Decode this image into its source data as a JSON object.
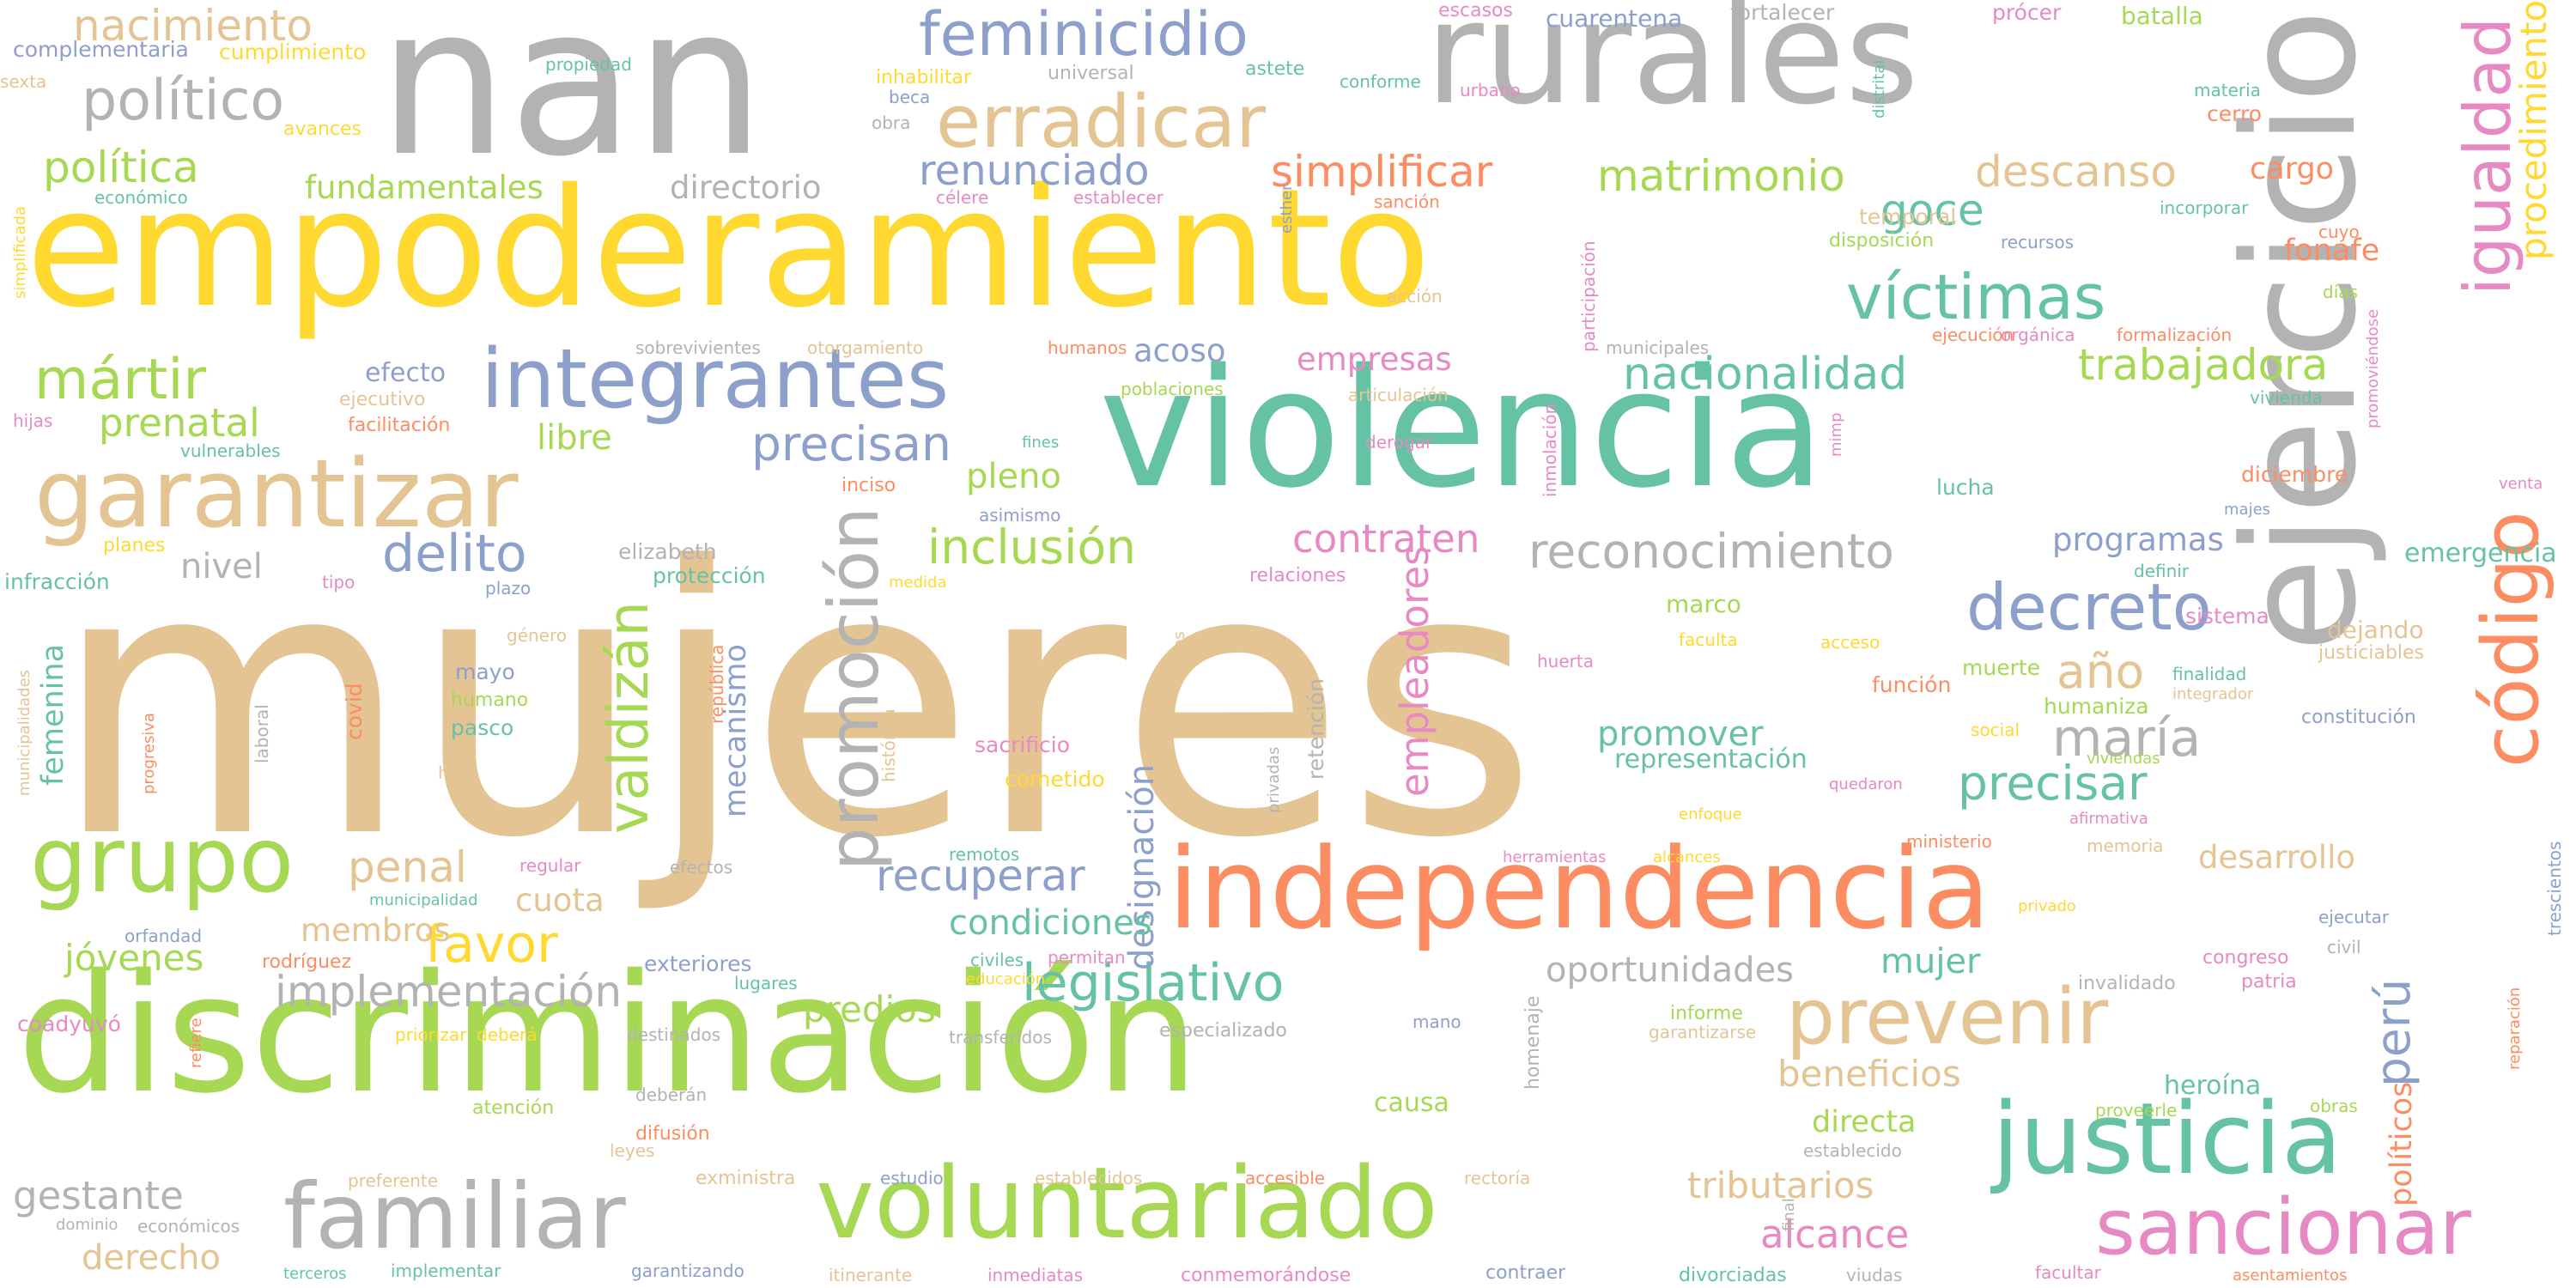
{
  "colors": {
    "green": "#a6d854",
    "gray": "#b3b3b3",
    "tan": "#e5c494",
    "yellow": "#ffd92f",
    "teal": "#66c2a5",
    "blue": "#8da0cb",
    "orange": "#fc8d62",
    "pink": "#e78ac3"
  },
  "words": [
    {
      "text": "mujeres",
      "color": "tan"
    },
    {
      "text": "nan",
      "color": "gray"
    },
    {
      "text": "empoderamiento",
      "color": "yellow"
    },
    {
      "text": "violencia",
      "color": "teal"
    },
    {
      "text": "discriminación",
      "color": "green"
    },
    {
      "text": "rurales",
      "color": "gray"
    },
    {
      "text": "ejercicio",
      "color": "gray"
    },
    {
      "text": "independencia",
      "color": "orange"
    },
    {
      "text": "voluntariado",
      "color": "green"
    },
    {
      "text": "integrantes",
      "color": "blue"
    },
    {
      "text": "garantizar",
      "color": "tan"
    },
    {
      "text": "justicia",
      "color": "teal"
    },
    {
      "text": "código",
      "color": "orange"
    },
    {
      "text": "promoción",
      "color": "gray"
    },
    {
      "text": "grupo",
      "color": "green"
    },
    {
      "text": "familiar",
      "color": "gray"
    },
    {
      "text": "sancionar",
      "color": "pink"
    },
    {
      "text": "prevenir",
      "color": "tan"
    },
    {
      "text": "igualdad",
      "color": "pink"
    },
    {
      "text": "erradicar",
      "color": "tan"
    },
    {
      "text": "feminicidio",
      "color": "blue"
    },
    {
      "text": "víctimas",
      "color": "teal"
    },
    {
      "text": "valdizán",
      "color": "green"
    },
    {
      "text": "decreto",
      "color": "blue"
    },
    {
      "text": "legislativo",
      "color": "teal"
    },
    {
      "text": "político",
      "color": "gray"
    },
    {
      "text": "mártir",
      "color": "green"
    },
    {
      "text": "precisan",
      "color": "blue"
    },
    {
      "text": "delito",
      "color": "blue"
    },
    {
      "text": "empleadores",
      "color": "pink"
    },
    {
      "text": "inclusión",
      "color": "green"
    },
    {
      "text": "reconocimiento",
      "color": "gray"
    },
    {
      "text": "nacionalidad",
      "color": "teal"
    },
    {
      "text": "trabajadora",
      "color": "green"
    },
    {
      "text": "simplificar",
      "color": "orange"
    },
    {
      "text": "matrimonio",
      "color": "green"
    },
    {
      "text": "política",
      "color": "green"
    },
    {
      "text": "implementación",
      "color": "gray"
    },
    {
      "text": "año",
      "color": "tan"
    },
    {
      "text": "maría",
      "color": "gray"
    },
    {
      "text": "precisar",
      "color": "teal"
    },
    {
      "text": "perú",
      "color": "blue"
    },
    {
      "text": "procedimiento",
      "color": "yellow"
    },
    {
      "text": "renunciado",
      "color": "blue"
    },
    {
      "text": "nacimiento",
      "color": "tan"
    },
    {
      "text": "descanso",
      "color": "tan"
    },
    {
      "text": "goce",
      "color": "teal"
    },
    {
      "text": "favor",
      "color": "yellow"
    },
    {
      "text": "penal",
      "color": "tan"
    },
    {
      "text": "recuperar",
      "color": "blue"
    },
    {
      "text": "designación",
      "color": "blue"
    },
    {
      "text": "prenatal",
      "color": "green"
    },
    {
      "text": "gestante",
      "color": "gray"
    },
    {
      "text": "derecho",
      "color": "tan"
    },
    {
      "text": "alcance",
      "color": "pink"
    },
    {
      "text": "tributarios",
      "color": "tan"
    },
    {
      "text": "beneficios",
      "color": "tan"
    },
    {
      "text": "políticos",
      "color": "orange"
    },
    {
      "text": "fundamentales",
      "color": "green"
    },
    {
      "text": "directorio",
      "color": "gray"
    },
    {
      "text": "acoso",
      "color": "blue"
    },
    {
      "text": "empresas",
      "color": "pink"
    },
    {
      "text": "contraten",
      "color": "pink"
    },
    {
      "text": "pleno",
      "color": "green"
    },
    {
      "text": "libre",
      "color": "green"
    },
    {
      "text": "nivel",
      "color": "gray"
    },
    {
      "text": "promover",
      "color": "teal"
    },
    {
      "text": "condiciones",
      "color": "teal"
    },
    {
      "text": "oportunidades",
      "color": "gray"
    },
    {
      "text": "mujer",
      "color": "teal"
    },
    {
      "text": "predios",
      "color": "green"
    },
    {
      "text": "jóvenes",
      "color": "green"
    },
    {
      "text": "membros",
      "color": "tan"
    },
    {
      "text": "cuota",
      "color": "tan"
    },
    {
      "text": "femenina",
      "color": "teal"
    },
    {
      "text": "mecanismo",
      "color": "blue"
    },
    {
      "text": "programas",
      "color": "blue"
    },
    {
      "text": "desarrollo",
      "color": "tan"
    },
    {
      "text": "emergencia",
      "color": "teal"
    },
    {
      "text": "fonafe",
      "color": "orange"
    },
    {
      "text": "cargo",
      "color": "orange"
    },
    {
      "text": "heroína",
      "color": "teal"
    },
    {
      "text": "directa",
      "color": "green"
    },
    {
      "text": "causa",
      "color": "green"
    },
    {
      "text": "efecto",
      "color": "blue"
    },
    {
      "text": "representación",
      "color": "teal"
    },
    {
      "text": "cumplimiento",
      "color": "yellow"
    },
    {
      "text": "complementaria",
      "color": "blue"
    },
    {
      "text": "cuarentena",
      "color": "blue"
    },
    {
      "text": "batalla",
      "color": "green"
    },
    {
      "text": "prócer",
      "color": "pink"
    },
    {
      "text": "fortalecer",
      "color": "gray"
    },
    {
      "text": "escasos",
      "color": "pink"
    },
    {
      "text": "astete",
      "color": "teal"
    },
    {
      "text": "inhabilitar",
      "color": "yellow"
    },
    {
      "text": "universal",
      "color": "gray"
    },
    {
      "text": "propiedad",
      "color": "teal"
    },
    {
      "text": "sexta",
      "color": "tan"
    },
    {
      "text": "avances",
      "color": "yellow"
    },
    {
      "text": "económico",
      "color": "teal"
    },
    {
      "text": "beca",
      "color": "blue"
    },
    {
      "text": "obra",
      "color": "gray"
    },
    {
      "text": "célere",
      "color": "pink"
    },
    {
      "text": "establecer",
      "color": "pink"
    },
    {
      "text": "conforme",
      "color": "teal"
    },
    {
      "text": "urbano",
      "color": "pink"
    },
    {
      "text": "sanción",
      "color": "orange"
    },
    {
      "text": "temporal",
      "color": "tan"
    },
    {
      "text": "incorporar",
      "color": "teal"
    },
    {
      "text": "cerro",
      "color": "orange"
    },
    {
      "text": "materia",
      "color": "teal"
    },
    {
      "text": "disposición",
      "color": "green"
    },
    {
      "text": "recursos",
      "color": "blue"
    },
    {
      "text": "cuyo",
      "color": "orange"
    },
    {
      "text": "días",
      "color": "green"
    },
    {
      "text": "acción",
      "color": "tan"
    },
    {
      "text": "ejecución",
      "color": "orange"
    },
    {
      "text": "orgánica",
      "color": "pink"
    },
    {
      "text": "formalización",
      "color": "orange"
    },
    {
      "text": "sobrevivientes",
      "color": "gray"
    },
    {
      "text": "otorgamiento",
      "color": "tan"
    },
    {
      "text": "humanos",
      "color": "orange"
    },
    {
      "text": "municipales",
      "color": "gray"
    },
    {
      "text": "ejecutivo",
      "color": "tan"
    },
    {
      "text": "poblaciones",
      "color": "green"
    },
    {
      "text": "articulación",
      "color": "tan"
    },
    {
      "text": "vivienda",
      "color": "teal"
    },
    {
      "text": "hijas",
      "color": "pink"
    },
    {
      "text": "facilitación",
      "color": "orange"
    },
    {
      "text": "vulnerables",
      "color": "teal"
    },
    {
      "text": "fines",
      "color": "teal"
    },
    {
      "text": "derogar",
      "color": "pink"
    },
    {
      "text": "lucha",
      "color": "teal"
    },
    {
      "text": "diciembre",
      "color": "orange"
    },
    {
      "text": "venta",
      "color": "pink"
    },
    {
      "text": "planes",
      "color": "yellow"
    },
    {
      "text": "inciso",
      "color": "orange"
    },
    {
      "text": "asimismo",
      "color": "blue"
    },
    {
      "text": "majes",
      "color": "blue"
    },
    {
      "text": "elizabeth",
      "color": "gray"
    },
    {
      "text": "infracción",
      "color": "teal"
    },
    {
      "text": "tipo",
      "color": "pink"
    },
    {
      "text": "plazo",
      "color": "blue"
    },
    {
      "text": "protección",
      "color": "teal"
    },
    {
      "text": "medida",
      "color": "yellow"
    },
    {
      "text": "relaciones",
      "color": "pink"
    },
    {
      "text": "definir",
      "color": "teal"
    },
    {
      "text": "marco",
      "color": "green"
    },
    {
      "text": "faculta",
      "color": "yellow"
    },
    {
      "text": "acceso",
      "color": "yellow"
    },
    {
      "text": "sistema",
      "color": "pink"
    },
    {
      "text": "dejando",
      "color": "tan"
    },
    {
      "text": "justiciables",
      "color": "tan"
    },
    {
      "text": "género",
      "color": "tan"
    },
    {
      "text": "mayo",
      "color": "blue"
    },
    {
      "text": "humano",
      "color": "green"
    },
    {
      "text": "pasco",
      "color": "teal"
    },
    {
      "text": "hijos",
      "color": "tan"
    },
    {
      "text": "huerta",
      "color": "pink"
    },
    {
      "text": "función",
      "color": "orange"
    },
    {
      "text": "muerte",
      "color": "green"
    },
    {
      "text": "finalidad",
      "color": "teal"
    },
    {
      "text": "integrador",
      "color": "tan"
    },
    {
      "text": "constitución",
      "color": "blue"
    },
    {
      "text": "humaniza",
      "color": "green"
    },
    {
      "text": "social",
      "color": "yellow"
    },
    {
      "text": "viviendas",
      "color": "green"
    },
    {
      "text": "sacrificio",
      "color": "pink"
    },
    {
      "text": "cometido",
      "color": "yellow"
    },
    {
      "text": "quedaron",
      "color": "pink"
    },
    {
      "text": "afirmativa",
      "color": "pink"
    },
    {
      "text": "enfoque",
      "color": "yellow"
    },
    {
      "text": "ministerio",
      "color": "orange"
    },
    {
      "text": "memoria",
      "color": "tan"
    },
    {
      "text": "remotos",
      "color": "teal"
    },
    {
      "text": "herramientas",
      "color": "pink"
    },
    {
      "text": "alcances",
      "color": "yellow"
    },
    {
      "text": "efectos",
      "color": "gray"
    },
    {
      "text": "regular",
      "color": "pink"
    },
    {
      "text": "municipalidad",
      "color": "teal"
    },
    {
      "text": "orfandad",
      "color": "blue"
    },
    {
      "text": "rodríguez",
      "color": "orange"
    },
    {
      "text": "exteriores",
      "color": "blue"
    },
    {
      "text": "civiles",
      "color": "teal"
    },
    {
      "text": "permitan",
      "color": "pink"
    },
    {
      "text": "educación",
      "color": "yellow"
    },
    {
      "text": "lugares",
      "color": "teal"
    },
    {
      "text": "privado",
      "color": "yellow"
    },
    {
      "text": "ejecutar",
      "color": "blue"
    },
    {
      "text": "civil",
      "color": "gray"
    },
    {
      "text": "congreso",
      "color": "pink"
    },
    {
      "text": "invalidado",
      "color": "gray"
    },
    {
      "text": "patria",
      "color": "pink"
    },
    {
      "text": "coadyuvó",
      "color": "pink"
    },
    {
      "text": "priorizar",
      "color": "yellow"
    },
    {
      "text": "deberá",
      "color": "yellow"
    },
    {
      "text": "destinados",
      "color": "gray"
    },
    {
      "text": "transferidos",
      "color": "gray"
    },
    {
      "text": "especializado",
      "color": "gray"
    },
    {
      "text": "mano",
      "color": "blue"
    },
    {
      "text": "informe",
      "color": "green"
    },
    {
      "text": "garantizarse",
      "color": "tan"
    },
    {
      "text": "proveerle",
      "color": "green"
    },
    {
      "text": "obras",
      "color": "green"
    },
    {
      "text": "deberán",
      "color": "gray"
    },
    {
      "text": "atención",
      "color": "green"
    },
    {
      "text": "difusión",
      "color": "orange"
    },
    {
      "text": "leyes",
      "color": "tan"
    },
    {
      "text": "establecido",
      "color": "gray"
    },
    {
      "text": "preferente",
      "color": "tan"
    },
    {
      "text": "exministra",
      "color": "tan"
    },
    {
      "text": "estudio",
      "color": "blue"
    },
    {
      "text": "establecidos",
      "color": "tan"
    },
    {
      "text": "accesible",
      "color": "orange"
    },
    {
      "text": "rectoría",
      "color": "tan"
    },
    {
      "text": "dominio",
      "color": "gray"
    },
    {
      "text": "económicos",
      "color": "gray"
    },
    {
      "text": "terceros",
      "color": "teal"
    },
    {
      "text": "implementar",
      "color": "teal"
    },
    {
      "text": "garantizando",
      "color": "blue"
    },
    {
      "text": "itinerante",
      "color": "tan"
    },
    {
      "text": "inmediatas",
      "color": "pink"
    },
    {
      "text": "conmemorándose",
      "color": "pink"
    },
    {
      "text": "contraer",
      "color": "blue"
    },
    {
      "text": "divorciadas",
      "color": "teal"
    },
    {
      "text": "viudas",
      "color": "gray"
    },
    {
      "text": "facultar",
      "color": "pink"
    },
    {
      "text": "asentamientos",
      "color": "orange"
    },
    {
      "text": "distrital",
      "color": "teal"
    },
    {
      "text": "esther",
      "color": "blue"
    },
    {
      "text": "participación",
      "color": "pink"
    },
    {
      "text": "inmolación",
      "color": "pink"
    },
    {
      "text": "mimp",
      "color": "pink"
    },
    {
      "text": "promoviéndose",
      "color": "pink"
    },
    {
      "text": "simplificada",
      "color": "yellow"
    },
    {
      "text": "municipalidades",
      "color": "tan"
    },
    {
      "text": "progresiva",
      "color": "orange"
    },
    {
      "text": "laboral",
      "color": "gray"
    },
    {
      "text": "covid",
      "color": "orange"
    },
    {
      "text": "república",
      "color": "orange"
    },
    {
      "text": "histórica",
      "color": "tan"
    },
    {
      "text": "casos",
      "color": "tan"
    },
    {
      "text": "privadas",
      "color": "gray"
    },
    {
      "text": "retención",
      "color": "gray"
    },
    {
      "text": "refiere",
      "color": "orange"
    },
    {
      "text": "homenaje",
      "color": "gray"
    },
    {
      "text": "final",
      "color": "gray"
    },
    {
      "text": "reparación",
      "color": "orange"
    },
    {
      "text": "trescientos",
      "color": "blue"
    }
  ]
}
